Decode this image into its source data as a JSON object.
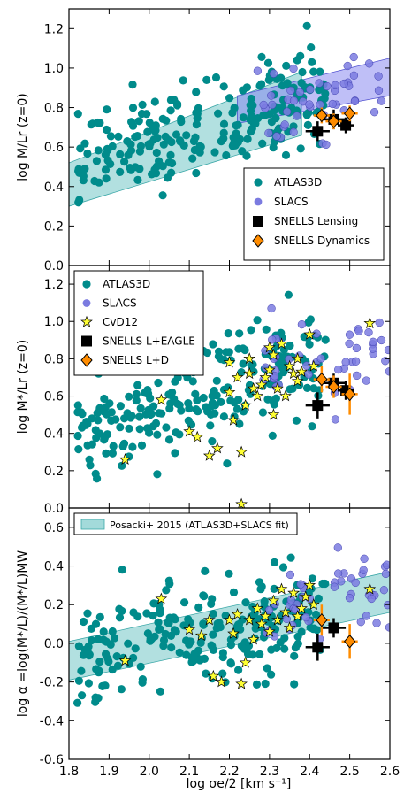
{
  "chart_data": {
    "type": "scatter",
    "shared_x": {
      "xlim": [
        1.8,
        2.6
      ],
      "ticks": [
        1.8,
        1.9,
        2.0,
        2.1,
        2.2,
        2.3,
        2.4,
        2.5,
        2.6
      ],
      "xlabel": "log σe/2 [km s⁻¹]"
    },
    "colors": {
      "atlas": "#008B8B",
      "slacs": "#7B7BE0",
      "snells": "#000000",
      "dyn": "#FF8C00",
      "cvd": "#FFFF33",
      "band_teal": "#66C2C2",
      "band_blue": "#8080F0"
    },
    "panels": [
      {
        "id": "top",
        "ylabel": "log M/Lr (z=0)",
        "ylim": [
          0.0,
          1.3
        ],
        "yticks": [
          0.0,
          0.2,
          0.4,
          0.6,
          0.8,
          1.0,
          1.2
        ],
        "legend_position": "lower-right",
        "legend": [
          "ATLAS3D",
          "SLACS",
          "SNELLS Lensing",
          "SNELLS Dynamics"
        ],
        "bands": [
          {
            "color": "teal",
            "x": [
              1.8,
              2.38
            ],
            "lower": [
              0.3,
              0.66
            ],
            "upper": [
              0.52,
              0.98
            ]
          },
          {
            "color": "blue",
            "x": [
              2.22,
              2.6
            ],
            "lower": [
              0.72,
              0.86
            ],
            "upper": [
              0.86,
              1.05
            ]
          }
        ],
        "snells": [
          {
            "x": 2.42,
            "y": 0.68,
            "xerr": 0.03,
            "yerr": 0.05
          },
          {
            "x": 2.46,
            "y": 0.74,
            "xerr": 0.03,
            "yerr": 0.05
          },
          {
            "x": 2.49,
            "y": 0.71,
            "xerr": 0.02,
            "yerr": 0.04
          }
        ],
        "dynamics": [
          {
            "x": 2.43,
            "y": 0.76,
            "xerr": 0.02,
            "yerr": 0.04
          },
          {
            "x": 2.46,
            "y": 0.73,
            "xerr": 0.02,
            "yerr": 0.04
          },
          {
            "x": 2.5,
            "y": 0.77,
            "xerr": 0.02,
            "yerr": 0.04
          }
        ]
      },
      {
        "id": "mid",
        "ylabel": "log M*/Lr (z=0)",
        "ylim": [
          0.0,
          1.3
        ],
        "yticks": [
          0.0,
          0.2,
          0.4,
          0.6,
          0.8,
          1.0,
          1.2
        ],
        "legend_position": "upper-left",
        "legend": [
          "ATLAS3D",
          "SLACS",
          "CvD12",
          "SNELLS L+EAGLE",
          "SNELLS L+D"
        ],
        "snells": [
          {
            "x": 2.42,
            "y": 0.55,
            "xerr": 0.03,
            "yerr": 0.07
          },
          {
            "x": 2.46,
            "y": 0.67,
            "xerr": 0.03,
            "yerr": 0.05
          },
          {
            "x": 2.49,
            "y": 0.63,
            "xerr": 0.02,
            "yerr": 0.05
          }
        ],
        "dynamics": [
          {
            "x": 2.43,
            "y": 0.69,
            "xerr": 0.02,
            "yerr": 0.07
          },
          {
            "x": 2.46,
            "y": 0.65,
            "xerr": 0.02,
            "yerr": 0.06
          },
          {
            "x": 2.5,
            "y": 0.61,
            "xerr": 0.02,
            "yerr": 0.11
          }
        ],
        "cvd12": [
          [
            1.94,
            0.26
          ],
          [
            2.03,
            0.58
          ],
          [
            2.1,
            0.41
          ],
          [
            2.12,
            0.38
          ],
          [
            2.15,
            0.28
          ],
          [
            2.17,
            0.32
          ],
          [
            2.2,
            0.62
          ],
          [
            2.2,
            0.78
          ],
          [
            2.21,
            0.47
          ],
          [
            2.22,
            0.7
          ],
          [
            2.23,
            0.3
          ],
          [
            2.23,
            0.02
          ],
          [
            2.24,
            0.55
          ],
          [
            2.25,
            0.72
          ],
          [
            2.25,
            0.8
          ],
          [
            2.26,
            0.64
          ],
          [
            2.27,
            0.6
          ],
          [
            2.28,
            0.66
          ],
          [
            2.29,
            0.7
          ],
          [
            2.3,
            0.74
          ],
          [
            2.3,
            0.86
          ],
          [
            2.31,
            0.5
          ],
          [
            2.31,
            0.82
          ],
          [
            2.32,
            0.64
          ],
          [
            2.33,
            0.88
          ],
          [
            2.34,
            0.6
          ],
          [
            2.35,
            0.76
          ],
          [
            2.36,
            0.72
          ],
          [
            2.37,
            0.8
          ],
          [
            2.37,
            0.68
          ],
          [
            2.38,
            0.73
          ],
          [
            2.4,
            0.93
          ],
          [
            2.41,
            0.76
          ],
          [
            2.55,
            0.99
          ]
        ]
      },
      {
        "id": "bottom",
        "ylabel": "log α =log(M*/L)/(M*/L)MW",
        "ylim": [
          -0.6,
          0.7
        ],
        "yticks": [
          -0.6,
          -0.4,
          -0.2,
          0.0,
          0.2,
          0.4,
          0.6
        ],
        "legend_position": "upper-left",
        "legend": [
          "Posacki+ 2015 (ATLAS3D+SLACS fit)"
        ],
        "bands": [
          {
            "color": "teal",
            "x": [
              1.8,
              2.6
            ],
            "lower": [
              -0.19,
              0.16
            ],
            "upper": [
              0.01,
              0.37
            ]
          }
        ],
        "snells": [
          {
            "x": 2.42,
            "y": -0.02,
            "xerr": 0.03,
            "yerr": 0.07
          },
          {
            "x": 2.46,
            "y": 0.08,
            "xerr": 0.03,
            "yerr": 0.05
          }
        ],
        "dynamics": [
          {
            "x": 2.43,
            "y": 0.12,
            "xerr": 0.02,
            "yerr": 0.08
          },
          {
            "x": 2.5,
            "y": 0.01,
            "xerr": 0.02,
            "yerr": 0.09
          }
        ],
        "cvd12": [
          [
            1.94,
            -0.09
          ],
          [
            2.03,
            0.23
          ],
          [
            2.1,
            0.07
          ],
          [
            2.13,
            0.04
          ],
          [
            2.15,
            0.12
          ],
          [
            2.16,
            -0.17
          ],
          [
            2.18,
            -0.2
          ],
          [
            2.2,
            0.12
          ],
          [
            2.21,
            0.05
          ],
          [
            2.22,
            0.15
          ],
          [
            2.23,
            -0.21
          ],
          [
            2.24,
            -0.1
          ],
          [
            2.25,
            0.12
          ],
          [
            2.26,
            0.02
          ],
          [
            2.27,
            0.18
          ],
          [
            2.28,
            0.1
          ],
          [
            2.29,
            0.14
          ],
          [
            2.3,
            0.06
          ],
          [
            2.31,
            0.22
          ],
          [
            2.32,
            0.12
          ],
          [
            2.33,
            0.28
          ],
          [
            2.34,
            0.16
          ],
          [
            2.35,
            0.08
          ],
          [
            2.36,
            0.26
          ],
          [
            2.37,
            0.14
          ],
          [
            2.38,
            0.18
          ],
          [
            2.39,
            0.24
          ],
          [
            2.4,
            0.3
          ],
          [
            2.41,
            0.2
          ],
          [
            2.55,
            0.28
          ]
        ]
      }
    ],
    "legend_labels": {
      "atlas": "ATLAS3D",
      "slacs": "SLACS",
      "snells_lensing": "SNELLS Lensing",
      "snells_dynamics": "SNELLS Dynamics",
      "cvd12": "CvD12",
      "snells_leagle": "SNELLS L+EAGLE",
      "snells_ld": "SNELLS L+D",
      "posacki": "Posacki+ 2015 (ATLAS3D+SLACS fit)"
    }
  }
}
